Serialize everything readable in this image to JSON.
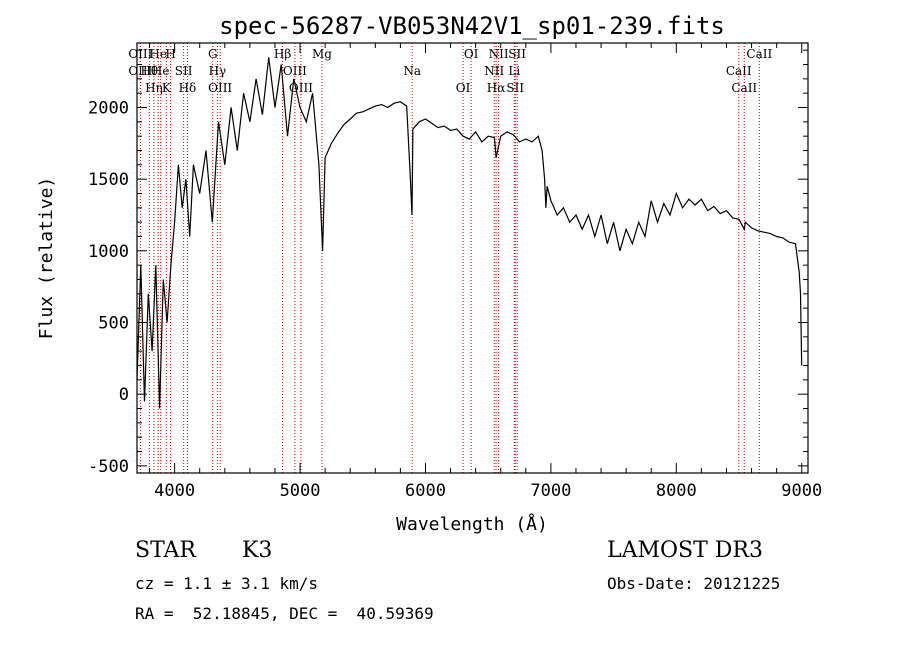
{
  "chart_data": {
    "type": "line",
    "title": "spec-56287-VB053N42V1_sp01-239.fits",
    "xlabel": "Wavelength (Å)",
    "ylabel": "Flux (relative)",
    "xlim": [
      3700,
      9050
    ],
    "ylim": [
      -550,
      2450
    ],
    "xticks": [
      4000,
      5000,
      6000,
      7000,
      8000,
      9000
    ],
    "yticks": [
      -500,
      0,
      500,
      1000,
      1500,
      2000
    ],
    "grid": false,
    "series": [
      {
        "x": [
          3700,
          3730,
          3760,
          3790,
          3820,
          3850,
          3880,
          3910,
          3940,
          3970,
          4000,
          4030,
          4060,
          4090,
          4120,
          4150,
          4200,
          4250,
          4300,
          4350,
          4400,
          4450,
          4500,
          4550,
          4600,
          4650,
          4700,
          4750,
          4800,
          4850,
          4900,
          4950,
          5000,
          5050,
          5100,
          5150,
          5180,
          5200,
          5250,
          5300,
          5350,
          5400,
          5450,
          5500,
          5550,
          5600,
          5650,
          5700,
          5750,
          5800,
          5850,
          5880,
          5893,
          5900,
          5950,
          6000,
          6050,
          6100,
          6150,
          6200,
          6250,
          6300,
          6350,
          6400,
          6450,
          6500,
          6550,
          6563,
          6600,
          6650,
          6700,
          6750,
          6800,
          6850,
          6900,
          6930,
          6950,
          6960,
          6970,
          7000,
          7050,
          7100,
          7150,
          7200,
          7250,
          7300,
          7350,
          7400,
          7450,
          7500,
          7550,
          7600,
          7650,
          7700,
          7750,
          7800,
          7850,
          7900,
          7950,
          8000,
          8050,
          8100,
          8150,
          8200,
          8250,
          8300,
          8350,
          8400,
          8450,
          8500,
          8542,
          8550,
          8600,
          8650,
          8700,
          8750,
          8800,
          8850,
          8900,
          8950,
          8980,
          8990,
          9000
        ],
        "y": [
          100,
          900,
          -50,
          700,
          300,
          900,
          -100,
          800,
          500,
          900,
          1200,
          1600,
          1300,
          1500,
          1100,
          1600,
          1400,
          1700,
          1200,
          1900,
          1600,
          2000,
          1700,
          2100,
          1900,
          2200,
          1950,
          2350,
          2000,
          2300,
          1800,
          2200,
          2000,
          1900,
          2100,
          1600,
          1000,
          1650,
          1750,
          1820,
          1880,
          1920,
          1960,
          1970,
          1990,
          2010,
          2020,
          2000,
          2030,
          2040,
          2010,
          1500,
          1250,
          1850,
          1900,
          1920,
          1890,
          1860,
          1870,
          1840,
          1850,
          1800,
          1780,
          1830,
          1760,
          1800,
          1790,
          1650,
          1800,
          1830,
          1810,
          1760,
          1780,
          1760,
          1800,
          1700,
          1500,
          1300,
          1450,
          1350,
          1250,
          1300,
          1200,
          1250,
          1150,
          1250,
          1100,
          1250,
          1050,
          1200,
          1000,
          1150,
          1050,
          1200,
          1100,
          1350,
          1200,
          1330,
          1250,
          1400,
          1300,
          1360,
          1320,
          1360,
          1280,
          1310,
          1260,
          1280,
          1230,
          1220,
          1150,
          1200,
          1160,
          1140,
          1130,
          1120,
          1100,
          1090,
          1060,
          1050,
          850,
          700,
          200
        ]
      }
    ],
    "lines": [
      {
        "w": 3727,
        "labels": [
          "OIII",
          "OIII"
        ]
      },
      {
        "w": 3798,
        "labels": [
          "Hθ"
        ]
      },
      {
        "w": 3835,
        "labels": [
          "Hη"
        ]
      },
      {
        "w": 3869,
        "labels": [
          "He"
        ]
      },
      {
        "w": 3889,
        "labels": [
          "He"
        ]
      },
      {
        "w": 3934,
        "labels": [
          "K"
        ]
      },
      {
        "w": 3968,
        "labels": [
          "H"
        ]
      },
      {
        "w": 4072,
        "labels": [
          "SII"
        ]
      },
      {
        "w": 4102,
        "labels": [
          "Hδ"
        ]
      },
      {
        "w": 4304,
        "labels": [
          "G"
        ]
      },
      {
        "w": 4341,
        "labels": [
          "Hγ"
        ]
      },
      {
        "w": 4363,
        "labels": [
          "OIII"
        ]
      },
      {
        "w": 4861,
        "labels": [
          "Hβ"
        ]
      },
      {
        "w": 4959,
        "labels": [
          "OIII"
        ]
      },
      {
        "w": 5007,
        "labels": [
          "OIII"
        ]
      },
      {
        "w": 5175,
        "labels": [
          "Mg"
        ]
      },
      {
        "w": 5894,
        "labels": [
          "Na"
        ]
      },
      {
        "w": 6300,
        "labels": [
          "OI"
        ]
      },
      {
        "w": 6364,
        "labels": [
          "OI"
        ]
      },
      {
        "w": 6548,
        "labels": [
          "NII"
        ]
      },
      {
        "w": 6563,
        "labels": [
          "Hα"
        ]
      },
      {
        "w": 6583,
        "labels": [
          "NII"
        ]
      },
      {
        "w": 6708,
        "labels": [
          "Li"
        ]
      },
      {
        "w": 6716,
        "labels": [
          "SII"
        ]
      },
      {
        "w": 6731,
        "labels": [
          "SII"
        ]
      },
      {
        "w": 8498,
        "labels": [
          "CaII"
        ]
      },
      {
        "w": 8542,
        "labels": [
          "CaII"
        ]
      },
      {
        "w": 8662,
        "labels": [
          "CaII"
        ]
      }
    ],
    "line_color": "#cc0000"
  },
  "info": {
    "class": "STAR",
    "subclass": "K3",
    "survey": "LAMOST DR3",
    "cz": "cz = 1.1 ± 3.1 km/s",
    "obsdate": "Obs-Date: 20121225",
    "radec": "RA =  52.18845, DEC =  40.59369"
  }
}
